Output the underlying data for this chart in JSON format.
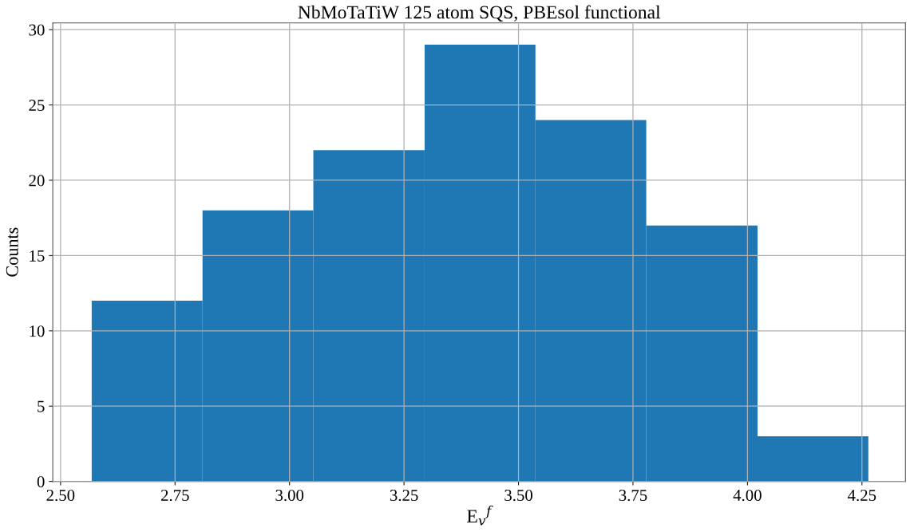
{
  "chart_data": {
    "type": "histogram",
    "title": "NbMoTaTiW 125 atom SQS, PBEsol functional",
    "xlabel": "E$_{v}$$^{f}$",
    "ylabel": "Counts",
    "bins": [
      2.568,
      2.81,
      3.052,
      3.295,
      3.537,
      3.779,
      4.022,
      4.264
    ],
    "values": [
      12,
      18,
      22,
      29,
      24,
      17,
      3
    ],
    "color": "#1f77b4",
    "xlim": [
      2.483,
      4.345
    ],
    "xticks": [
      {
        "value": 2.5,
        "label": "2.50"
      },
      {
        "value": 2.75,
        "label": "2.75"
      },
      {
        "value": 3.0,
        "label": "3.00"
      },
      {
        "value": 3.25,
        "label": "3.25"
      },
      {
        "value": 3.5,
        "label": "3.50"
      },
      {
        "value": 3.75,
        "label": "3.75"
      },
      {
        "value": 4.0,
        "label": "4.00"
      },
      {
        "value": 4.25,
        "label": "4.25"
      }
    ],
    "ylim": [
      0,
      30.45
    ],
    "yticks": [
      0,
      5,
      10,
      15,
      20,
      25,
      30
    ],
    "grid": true
  }
}
